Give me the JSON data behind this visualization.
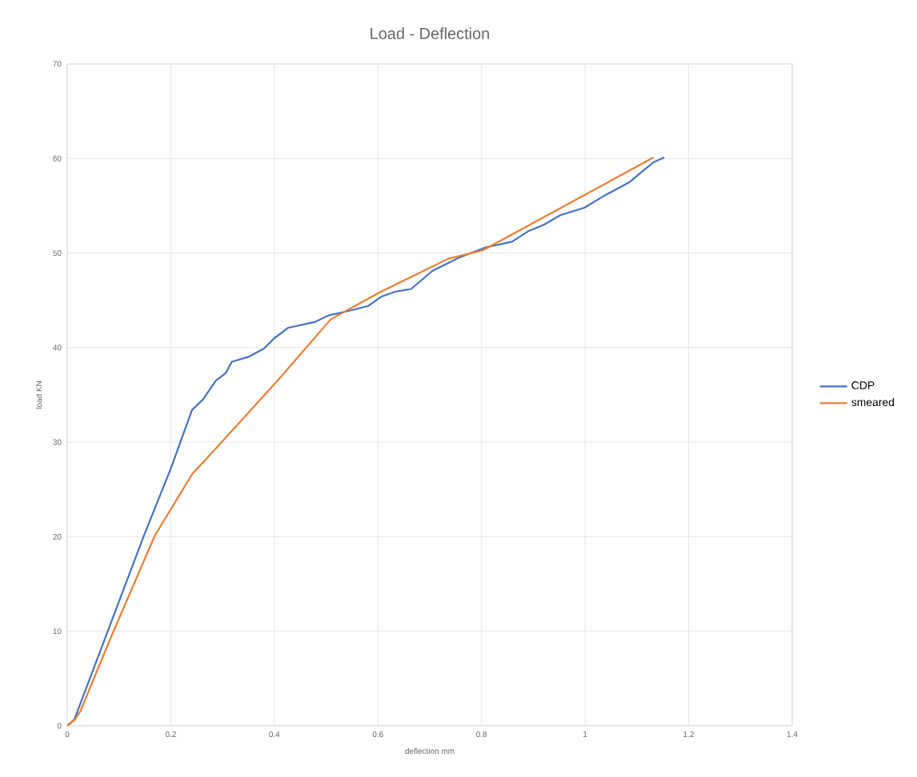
{
  "chart_data": {
    "type": "line",
    "title": "Load - Deflection",
    "xlabel": "deflection mm",
    "ylabel": "load KN",
    "xlim": [
      0,
      1.4
    ],
    "xticks": [
      0,
      0.2,
      0.4,
      0.6,
      0.8,
      1,
      1.2,
      1.4
    ],
    "ylim": [
      0,
      70
    ],
    "yticks": [
      0,
      10,
      20,
      30,
      40,
      50,
      60,
      70
    ],
    "grid": true,
    "legend": "right",
    "marker": "none",
    "line_style": "solid",
    "series": [
      {
        "name": "CDP",
        "color": "#4472c4",
        "x": [
          0,
          0.014,
          0.148,
          0.2,
          0.241,
          0.262,
          0.287,
          0.306,
          0.318,
          0.349,
          0.38,
          0.4,
          0.427,
          0.478,
          0.504,
          0.545,
          0.581,
          0.607,
          0.633,
          0.664,
          0.705,
          0.756,
          0.808,
          0.859,
          0.89,
          0.921,
          0.952,
          0.999,
          1.035,
          1.086,
          1.112,
          1.132,
          1.153
        ],
        "values": [
          0,
          0.7,
          20.1,
          27.2,
          33.4,
          34.5,
          36.5,
          37.3,
          38.5,
          39.0,
          39.9,
          41.0,
          42.1,
          42.7,
          43.4,
          43.9,
          44.4,
          45.4,
          45.9,
          46.2,
          48.1,
          49.5,
          50.6,
          51.2,
          52.3,
          53.0,
          54.0,
          54.8,
          56.0,
          57.5,
          58.7,
          59.6,
          60.1
        ]
      },
      {
        "name": "smeared",
        "color": "#ed7d31",
        "x": [
          0,
          0.014,
          0.025,
          0.087,
          0.169,
          0.241,
          0.293,
          0.406,
          0.509,
          0.602,
          0.736,
          0.803,
          1.132
        ],
        "values": [
          0,
          0.6,
          1.5,
          9.7,
          20.1,
          26.6,
          29.7,
          36.5,
          43.0,
          45.8,
          49.4,
          50.3,
          60.1
        ]
      }
    ]
  }
}
